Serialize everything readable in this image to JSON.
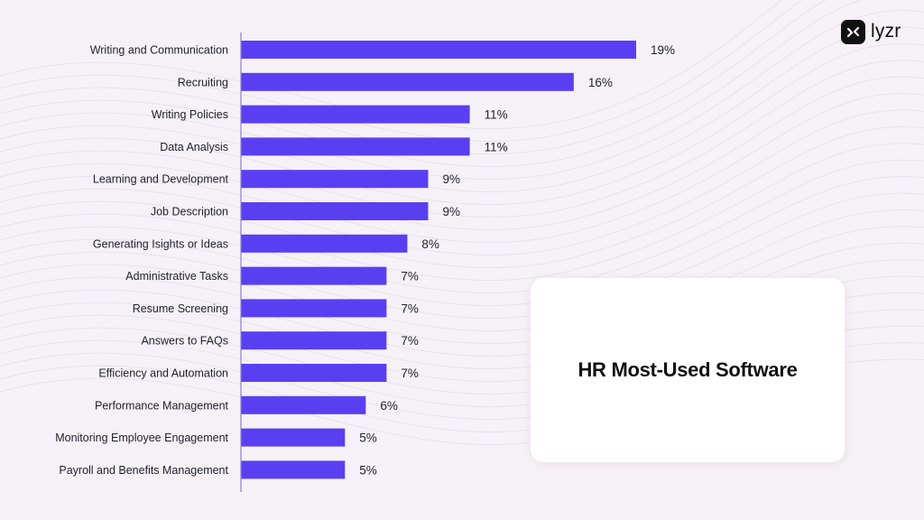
{
  "brand": {
    "name": "lyzr"
  },
  "colors": {
    "background": "#f6f1f6",
    "bar": "#5a3ff2",
    "axis": "#8a7fd6",
    "text": "#22222e"
  },
  "chart_data": {
    "type": "bar",
    "orientation": "horizontal",
    "title": "HR Most-Used Software",
    "xlabel": "",
    "ylabel": "",
    "xlim": [
      0,
      19
    ],
    "grid": false,
    "value_suffix": "%",
    "categories": [
      "Writing and Communication",
      "Recruiting",
      "Writing Policies",
      "Data Analysis",
      "Learning and Development",
      "Job Description",
      "Generating Isights or Ideas",
      "Administrative Tasks",
      "Resume Screening",
      "Answers to FAQs",
      "Efficiency and Automation",
      "Performance Management",
      "Monitoring Employee Engagement",
      "Payroll and Benefits Management"
    ],
    "values": [
      19,
      16,
      11,
      11,
      9,
      9,
      8,
      7,
      7,
      7,
      7,
      6,
      5,
      5
    ],
    "value_labels": [
      "19%",
      "16%",
      "11%",
      "11%",
      "9%",
      "9%",
      "8%",
      "7%",
      "7%",
      "7%",
      "7%",
      "6%",
      "5%",
      "5%"
    ]
  }
}
